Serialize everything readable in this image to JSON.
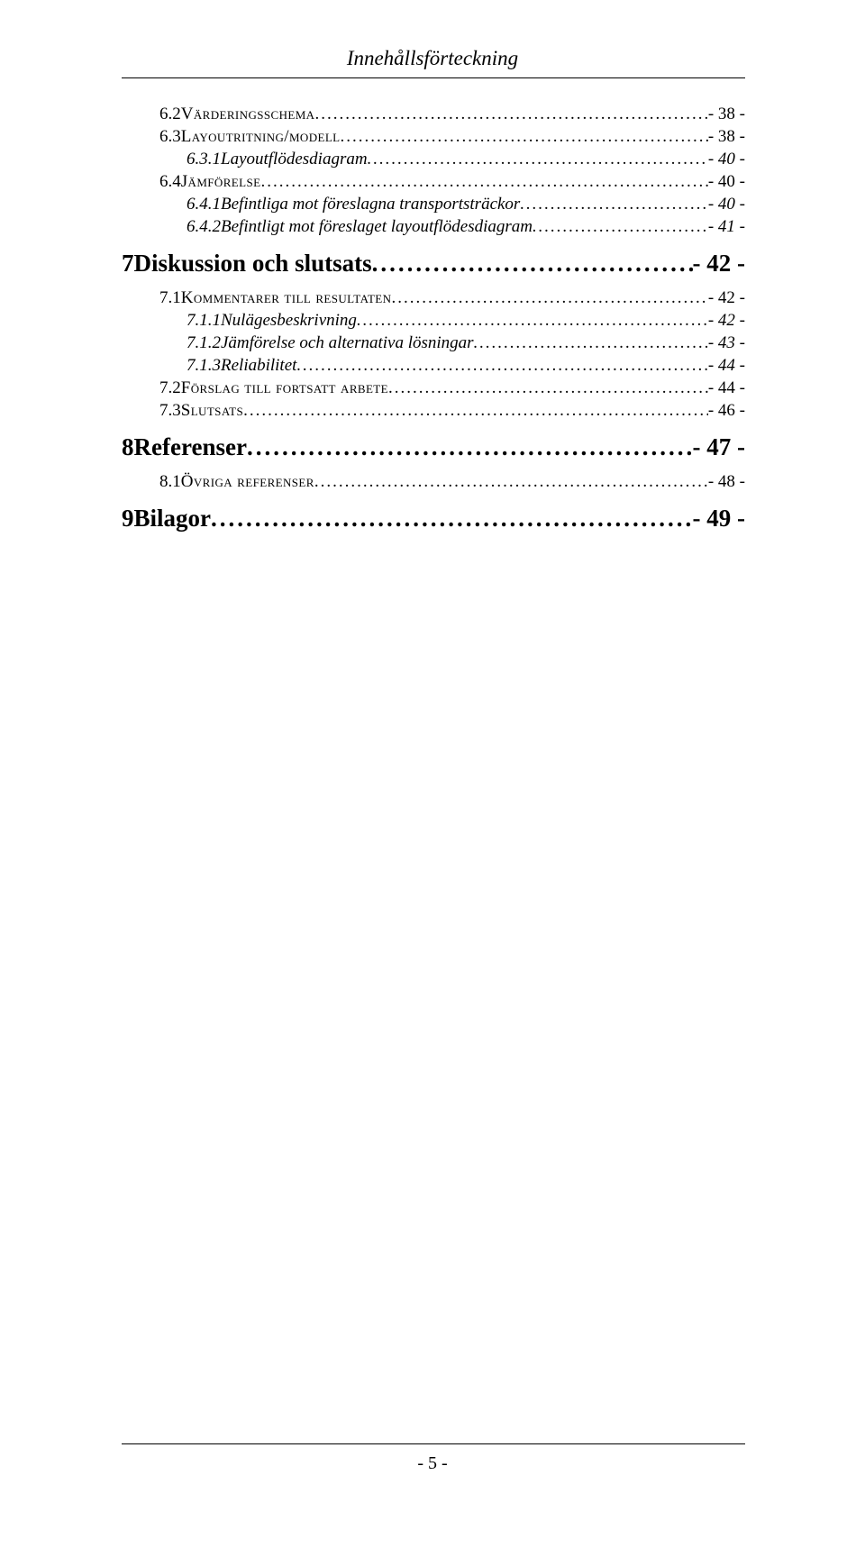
{
  "header": {
    "title": "Innehållsförteckning"
  },
  "footer": {
    "page_number": "- 5 -"
  },
  "toc": {
    "entries": [
      {
        "level": "l2",
        "num": "6.2",
        "label": "Värderingsschema",
        "page": "- 38 -"
      },
      {
        "level": "l2",
        "num": "6.3",
        "label": "Layoutritning/modell",
        "page": "- 38 -"
      },
      {
        "level": "l3",
        "num": "6.3.1",
        "label": "Layoutflödesdiagram",
        "page": "- 40 -"
      },
      {
        "level": "l2",
        "num": "6.4",
        "label": "Jämförelse",
        "page": "- 40 -"
      },
      {
        "level": "l3",
        "num": "6.4.1",
        "label": "Befintliga mot föreslagna transportsträckor",
        "page": "- 40 -"
      },
      {
        "level": "l3",
        "num": "6.4.2",
        "label": "Befintligt mot föreslaget layoutflödesdiagram",
        "page": "- 41 -"
      },
      {
        "level": "l1",
        "num": "7",
        "label": "Diskussion och slutsats",
        "page": "- 42 -"
      },
      {
        "level": "l2",
        "num": "7.1",
        "label": "Kommentarer till resultaten",
        "page": "- 42 -"
      },
      {
        "level": "l3",
        "num": "7.1.1",
        "label": "Nulägesbeskrivning",
        "page": "- 42 -"
      },
      {
        "level": "l3",
        "num": "7.1.2",
        "label": "Jämförelse och alternativa lösningar",
        "page": "- 43 -"
      },
      {
        "level": "l3",
        "num": "7.1.3",
        "label": "Reliabilitet",
        "page": "- 44 -"
      },
      {
        "level": "l2",
        "num": "7.2",
        "label": "Förslag till fortsatt arbete",
        "page": "- 44 -"
      },
      {
        "level": "l2",
        "num": "7.3",
        "label": "Slutsats",
        "page": "- 46 -"
      },
      {
        "level": "l1",
        "num": "8",
        "label": "Referenser",
        "page": "- 47 -"
      },
      {
        "level": "l2",
        "num": "8.1",
        "label": "Övriga referenser",
        "page": "- 48 -"
      },
      {
        "level": "l1",
        "num": "9",
        "label": "Bilagor",
        "page": "- 49 -"
      }
    ]
  }
}
